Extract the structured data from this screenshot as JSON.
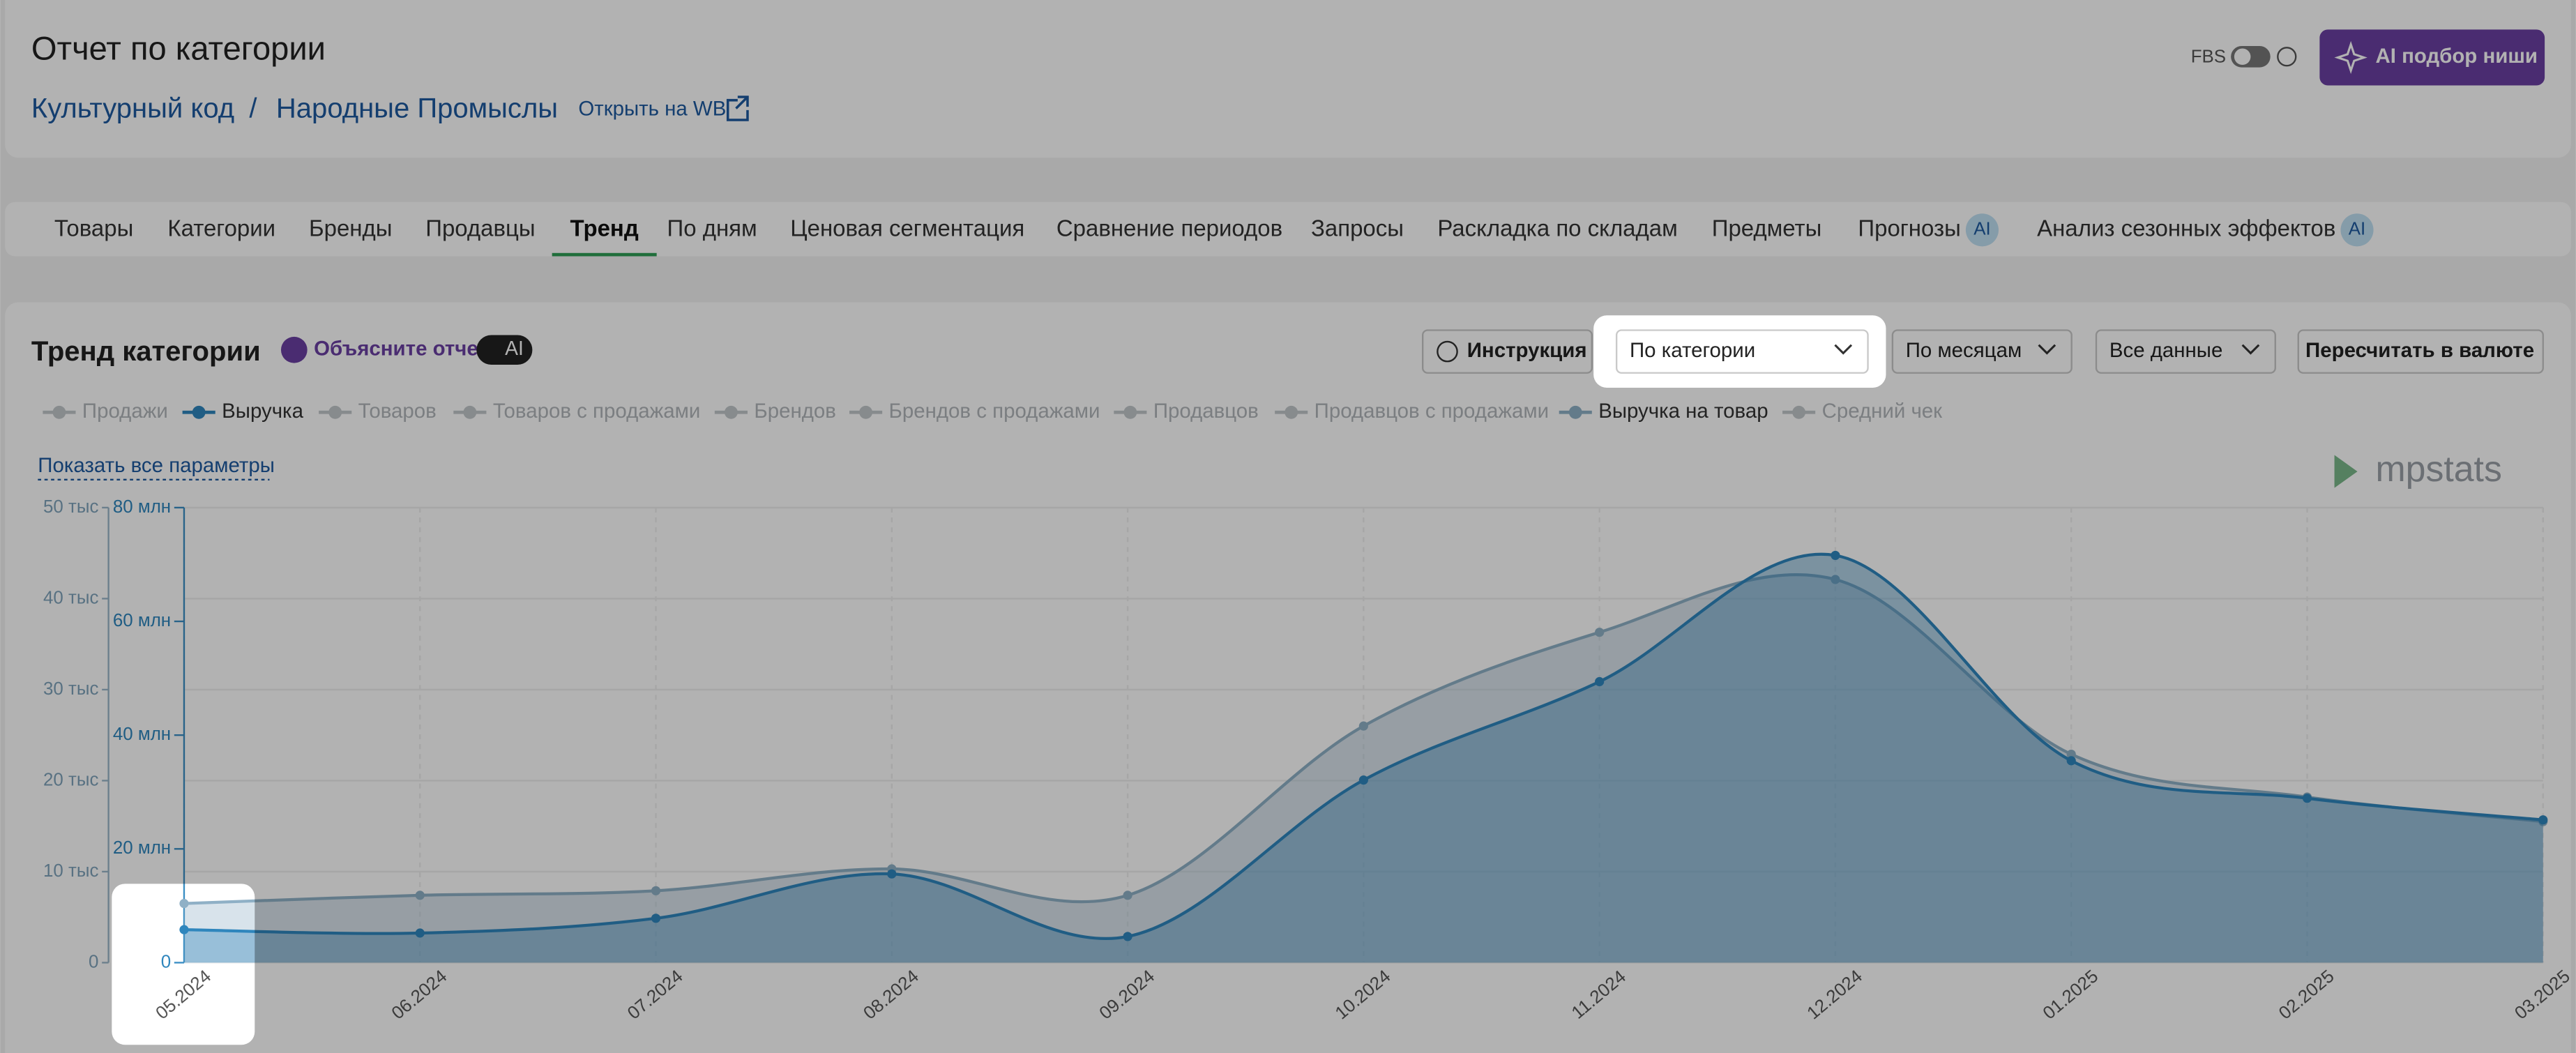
{
  "header": {
    "title": "Отчет по категории",
    "breadcrumb": [
      "Культурный код",
      "/",
      "Народные Промыслы"
    ],
    "open_link": "Открыть на WB",
    "fbs": "FBS",
    "ai_button": "AI подбор ниши"
  },
  "tabs": {
    "items": [
      "Товары",
      "Категории",
      "Бренды",
      "Продавцы",
      "Тренд",
      "По дням",
      "Ценовая сегментация",
      "Сравнение периодов",
      "Запросы",
      "Раскладка по складам",
      "Предметы",
      "Прогнозы",
      "Анализ сезонных эффектов"
    ],
    "active": 4,
    "badge": "AI",
    "badged": [
      11,
      12
    ]
  },
  "panel": {
    "title": "Тренд категории",
    "explain": "Объясните отчет",
    "explain_badge": "AI",
    "instruction": "Инструкция",
    "dropdowns": [
      "По категории",
      "По месяцам",
      "Все данные"
    ],
    "recalc": "Пересчитать в валюте",
    "show_all": "Показать все параметры",
    "logo": "mpstats"
  },
  "chart_data": {
    "type": "area",
    "categories": [
      "05.2024",
      "06.2024",
      "07.2024",
      "08.2024",
      "09.2024",
      "10.2024",
      "11.2024",
      "12.2024",
      "01.2025",
      "02.2025",
      "03.2025"
    ],
    "series": [
      {
        "name": "Продажи",
        "color": "#b5bcc2",
        "visible": false
      },
      {
        "name": "Выручка",
        "color": "#2f86bd",
        "visible": true,
        "axis": "y",
        "values": [
          5800000,
          5200000,
          7800000,
          15600000,
          4600000,
          32100000,
          49400000,
          71600000,
          35500000,
          28900000,
          25100000
        ]
      },
      {
        "name": "Товаров",
        "color": "#b5bcc2",
        "visible": false
      },
      {
        "name": "Товаров с продажами",
        "color": "#b5bcc2",
        "visible": false
      },
      {
        "name": "Брендов",
        "color": "#b5bcc2",
        "visible": false
      },
      {
        "name": "Брендов с продажами",
        "color": "#b5bcc2",
        "visible": false
      },
      {
        "name": "Продавцов",
        "color": "#b5bcc2",
        "visible": false
      },
      {
        "name": "Продавцов с продажами",
        "color": "#b5bcc2",
        "visible": false
      },
      {
        "name": "Выручка на товар",
        "color": "#8fb0c6",
        "visible": true,
        "axis": "y2",
        "values": [
          6500,
          7400,
          7900,
          10300,
          7400,
          26000,
          36300,
          42100,
          22900,
          18200,
          15500
        ]
      },
      {
        "name": "Средний чек",
        "color": "#b5bcc2",
        "visible": false
      }
    ],
    "ylim": [
      0,
      80000000
    ],
    "yticks": [
      0,
      {
        "value": 20000000,
        "label": "20 млн"
      },
      {
        "value": 40000000,
        "label": "40 млн"
      },
      {
        "value": 60000000,
        "label": "60 млн"
      },
      {
        "value": 80000000,
        "label": "80 млн"
      }
    ],
    "y2lim": [
      0,
      50000
    ],
    "y2ticks": [
      0,
      {
        "value": 10000,
        "label": "10 тыс"
      },
      {
        "value": 20000,
        "label": "20 тыс"
      },
      {
        "value": 30000,
        "label": "30 тыс"
      },
      {
        "value": 40000,
        "label": "40 тыс"
      },
      {
        "value": 50000,
        "label": "50 тыс"
      }
    ],
    "grid": true
  }
}
